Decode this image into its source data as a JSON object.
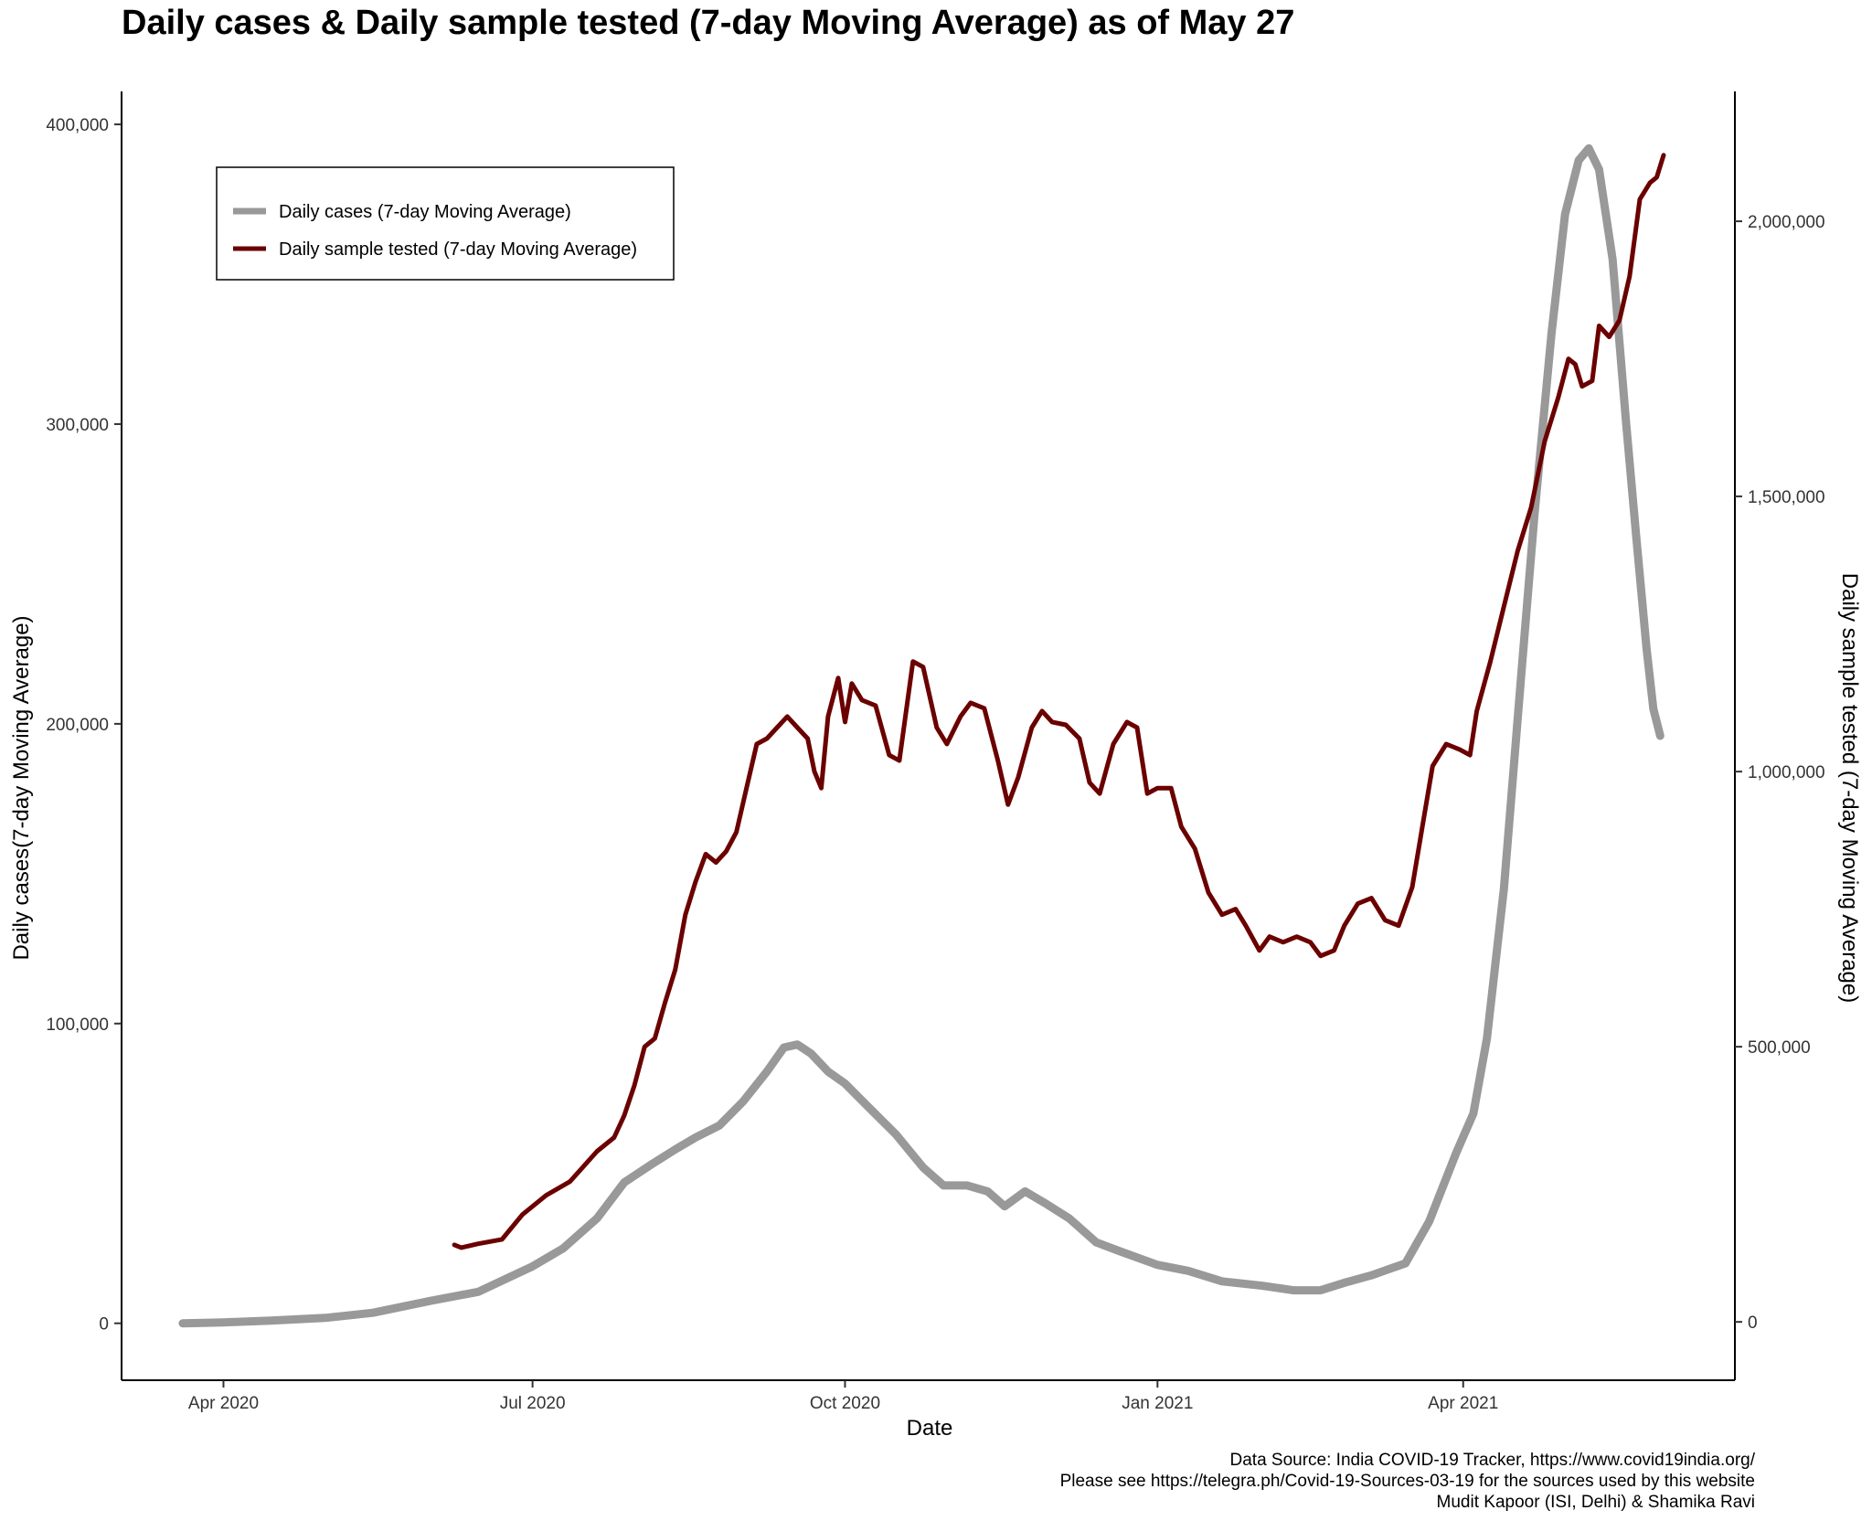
{
  "chart_data": {
    "type": "line",
    "title": "Daily cases & Daily sample tested (7-day Moving Average) as of May 27",
    "xlabel": "Date",
    "ylabel_left": "Daily cases(7-day Moving Average)",
    "ylabel_right": "Daily sample tested (7-day Moving Average)",
    "x_ticks": [
      "Apr 2020",
      "Jul 2020",
      "Oct 2020",
      "Jan 2021",
      "Apr 2021"
    ],
    "x_tick_dates": [
      "2020-04-01",
      "2020-07-01",
      "2020-10-01",
      "2021-01-01",
      "2021-04-01"
    ],
    "xlim": [
      "2020-03-02",
      "2021-06-20"
    ],
    "y_left_ticks": [
      "0",
      "100,000",
      "200,000",
      "300,000",
      "400,000"
    ],
    "y_left_tick_values": [
      0,
      100000,
      200000,
      300000,
      400000
    ],
    "y_left_lim": [
      -19000,
      411000
    ],
    "y_right_ticks": [
      "0",
      "500,000",
      "1,000,000",
      "1,500,000",
      "2,000,000"
    ],
    "y_right_tick_values": [
      0,
      500000,
      1000000,
      1500000,
      2000000
    ],
    "y_right_lim": [
      -106000,
      2236000
    ],
    "legend_position": "top-left",
    "grid": false,
    "series": [
      {
        "name": "Daily cases (7-day Moving Average)",
        "axis": "left",
        "color": "#999999",
        "points": [
          [
            "2020-03-20",
            0
          ],
          [
            "2020-04-01",
            300
          ],
          [
            "2020-04-15",
            900
          ],
          [
            "2020-05-01",
            1800
          ],
          [
            "2020-05-15",
            3500
          ],
          [
            "2020-06-01",
            7500
          ],
          [
            "2020-06-15",
            10500
          ],
          [
            "2020-07-01",
            19000
          ],
          [
            "2020-07-10",
            25000
          ],
          [
            "2020-07-20",
            35000
          ],
          [
            "2020-07-28",
            47000
          ],
          [
            "2020-08-05",
            53000
          ],
          [
            "2020-08-12",
            58000
          ],
          [
            "2020-08-18",
            62000
          ],
          [
            "2020-08-25",
            66000
          ],
          [
            "2020-09-01",
            74000
          ],
          [
            "2020-09-08",
            84000
          ],
          [
            "2020-09-13",
            92000
          ],
          [
            "2020-09-17",
            93000
          ],
          [
            "2020-09-21",
            90000
          ],
          [
            "2020-09-26",
            84000
          ],
          [
            "2020-10-01",
            80000
          ],
          [
            "2020-10-08",
            72000
          ],
          [
            "2020-10-16",
            63000
          ],
          [
            "2020-10-24",
            52000
          ],
          [
            "2020-10-30",
            46000
          ],
          [
            "2020-11-06",
            46000
          ],
          [
            "2020-11-12",
            44000
          ],
          [
            "2020-11-17",
            39000
          ],
          [
            "2020-11-23",
            44000
          ],
          [
            "2020-11-29",
            40000
          ],
          [
            "2020-12-06",
            35000
          ],
          [
            "2020-12-14",
            27000
          ],
          [
            "2020-12-21",
            24000
          ],
          [
            "2021-01-01",
            19500
          ],
          [
            "2021-01-10",
            17500
          ],
          [
            "2021-01-20",
            14000
          ],
          [
            "2021-02-01",
            12500
          ],
          [
            "2021-02-10",
            11000
          ],
          [
            "2021-02-18",
            11000
          ],
          [
            "2021-02-25",
            13500
          ],
          [
            "2021-03-05",
            16000
          ],
          [
            "2021-03-15",
            20000
          ],
          [
            "2021-03-22",
            34000
          ],
          [
            "2021-03-30",
            57000
          ],
          [
            "2021-04-04",
            70000
          ],
          [
            "2021-04-08",
            95000
          ],
          [
            "2021-04-13",
            145000
          ],
          [
            "2021-04-18",
            215000
          ],
          [
            "2021-04-22",
            270000
          ],
          [
            "2021-04-27",
            330000
          ],
          [
            "2021-05-01",
            370000
          ],
          [
            "2021-05-05",
            388000
          ],
          [
            "2021-05-08",
            392000
          ],
          [
            "2021-05-11",
            385000
          ],
          [
            "2021-05-15",
            355000
          ],
          [
            "2021-05-19",
            300000
          ],
          [
            "2021-05-22",
            262000
          ],
          [
            "2021-05-25",
            225000
          ],
          [
            "2021-05-27",
            205000
          ],
          [
            "2021-05-29",
            196000
          ]
        ]
      },
      {
        "name": "Daily sample tested (7-day Moving Average)",
        "axis": "right",
        "color": "#6b0000",
        "points": [
          [
            "2020-06-08",
            140000
          ],
          [
            "2020-06-10",
            135000
          ],
          [
            "2020-06-15",
            142000
          ],
          [
            "2020-06-22",
            150000
          ],
          [
            "2020-06-28",
            195000
          ],
          [
            "2020-07-05",
            230000
          ],
          [
            "2020-07-12",
            255000
          ],
          [
            "2020-07-20",
            310000
          ],
          [
            "2020-07-25",
            335000
          ],
          [
            "2020-07-28",
            375000
          ],
          [
            "2020-07-31",
            430000
          ],
          [
            "2020-08-03",
            500000
          ],
          [
            "2020-08-06",
            515000
          ],
          [
            "2020-08-09",
            580000
          ],
          [
            "2020-08-12",
            640000
          ],
          [
            "2020-08-15",
            740000
          ],
          [
            "2020-08-18",
            800000
          ],
          [
            "2020-08-21",
            850000
          ],
          [
            "2020-08-24",
            835000
          ],
          [
            "2020-08-27",
            855000
          ],
          [
            "2020-08-30",
            890000
          ],
          [
            "2020-09-02",
            970000
          ],
          [
            "2020-09-05",
            1050000
          ],
          [
            "2020-09-08",
            1060000
          ],
          [
            "2020-09-11",
            1080000
          ],
          [
            "2020-09-14",
            1100000
          ],
          [
            "2020-09-17",
            1080000
          ],
          [
            "2020-09-20",
            1060000
          ],
          [
            "2020-09-22",
            1000000
          ],
          [
            "2020-09-24",
            970000
          ],
          [
            "2020-09-26",
            1100000
          ],
          [
            "2020-09-29",
            1170000
          ],
          [
            "2020-10-01",
            1090000
          ],
          [
            "2020-10-03",
            1160000
          ],
          [
            "2020-10-06",
            1130000
          ],
          [
            "2020-10-10",
            1120000
          ],
          [
            "2020-10-14",
            1030000
          ],
          [
            "2020-10-17",
            1020000
          ],
          [
            "2020-10-21",
            1200000
          ],
          [
            "2020-10-24",
            1190000
          ],
          [
            "2020-10-28",
            1080000
          ],
          [
            "2020-10-31",
            1050000
          ],
          [
            "2020-11-04",
            1100000
          ],
          [
            "2020-11-07",
            1125000
          ],
          [
            "2020-11-11",
            1115000
          ],
          [
            "2020-11-15",
            1020000
          ],
          [
            "2020-11-18",
            940000
          ],
          [
            "2020-11-21",
            990000
          ],
          [
            "2020-11-25",
            1080000
          ],
          [
            "2020-11-28",
            1110000
          ],
          [
            "2020-12-01",
            1090000
          ],
          [
            "2020-12-05",
            1085000
          ],
          [
            "2020-12-09",
            1060000
          ],
          [
            "2020-12-12",
            980000
          ],
          [
            "2020-12-15",
            960000
          ],
          [
            "2020-12-19",
            1050000
          ],
          [
            "2020-12-23",
            1090000
          ],
          [
            "2020-12-26",
            1080000
          ],
          [
            "2020-12-29",
            960000
          ],
          [
            "2021-01-01",
            970000
          ],
          [
            "2021-01-05",
            970000
          ],
          [
            "2021-01-08",
            900000
          ],
          [
            "2021-01-12",
            860000
          ],
          [
            "2021-01-16",
            780000
          ],
          [
            "2021-01-20",
            740000
          ],
          [
            "2021-01-24",
            750000
          ],
          [
            "2021-01-27",
            720000
          ],
          [
            "2021-01-31",
            675000
          ],
          [
            "2021-02-03",
            700000
          ],
          [
            "2021-02-07",
            690000
          ],
          [
            "2021-02-11",
            700000
          ],
          [
            "2021-02-15",
            690000
          ],
          [
            "2021-02-18",
            665000
          ],
          [
            "2021-02-22",
            675000
          ],
          [
            "2021-02-25",
            720000
          ],
          [
            "2021-03-01",
            760000
          ],
          [
            "2021-03-05",
            770000
          ],
          [
            "2021-03-09",
            730000
          ],
          [
            "2021-03-13",
            720000
          ],
          [
            "2021-03-17",
            790000
          ],
          [
            "2021-03-20",
            900000
          ],
          [
            "2021-03-23",
            1010000
          ],
          [
            "2021-03-27",
            1050000
          ],
          [
            "2021-03-31",
            1040000
          ],
          [
            "2021-04-03",
            1030000
          ],
          [
            "2021-04-05",
            1110000
          ],
          [
            "2021-04-09",
            1200000
          ],
          [
            "2021-04-13",
            1300000
          ],
          [
            "2021-04-17",
            1400000
          ],
          [
            "2021-04-21",
            1480000
          ],
          [
            "2021-04-25",
            1600000
          ],
          [
            "2021-04-29",
            1680000
          ],
          [
            "2021-05-02",
            1750000
          ],
          [
            "2021-05-04",
            1740000
          ],
          [
            "2021-05-06",
            1700000
          ],
          [
            "2021-05-09",
            1710000
          ],
          [
            "2021-05-11",
            1810000
          ],
          [
            "2021-05-14",
            1790000
          ],
          [
            "2021-05-17",
            1820000
          ],
          [
            "2021-05-20",
            1900000
          ],
          [
            "2021-05-23",
            2040000
          ],
          [
            "2021-05-26",
            2070000
          ],
          [
            "2021-05-28",
            2080000
          ],
          [
            "2021-05-30",
            2120000
          ]
        ]
      }
    ]
  },
  "caption": {
    "line1": "Data Source: India COVID-19 Tracker, https://www.covid19india.org/",
    "line2": "Please see https://telegra.ph/Covid-19-Sources-03-19 for the sources used by this website",
    "line3": "Mudit Kapoor (ISI, Delhi) & Shamika Ravi"
  }
}
